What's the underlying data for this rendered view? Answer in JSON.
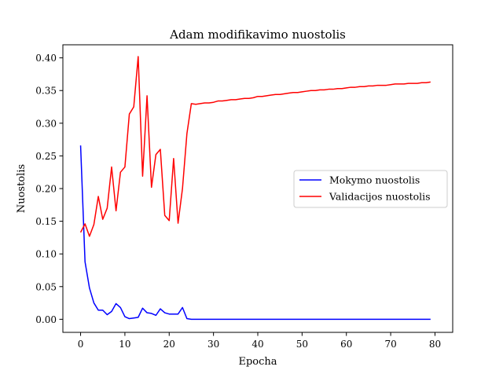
{
  "chart_data": {
    "type": "line",
    "title": "Adam modifikavimo nuostolis",
    "xlabel": "Epocha",
    "ylabel": "Nuostolis",
    "xlim": [
      -4,
      84
    ],
    "ylim": [
      -0.02,
      0.42
    ],
    "xticks": [
      0,
      10,
      20,
      30,
      40,
      50,
      60,
      70,
      80
    ],
    "yticks": [
      0.0,
      0.05,
      0.1,
      0.15,
      0.2,
      0.25,
      0.3,
      0.35,
      0.4
    ],
    "xtick_labels": [
      "0",
      "10",
      "20",
      "30",
      "40",
      "50",
      "60",
      "70",
      "80"
    ],
    "ytick_labels": [
      "0.00",
      "0.05",
      "0.10",
      "0.15",
      "0.20",
      "0.25",
      "0.30",
      "0.35",
      "0.40"
    ],
    "grid": false,
    "legend": "center-right",
    "series": [
      {
        "name": "Mokymo nuostolis",
        "color": "#0000ff",
        "x": [
          0,
          1,
          2,
          3,
          4,
          5,
          6,
          7,
          8,
          9,
          10,
          11,
          12,
          13,
          14,
          15,
          16,
          17,
          18,
          19,
          20,
          21,
          22,
          23,
          24,
          25,
          26,
          27,
          28,
          29,
          30,
          31,
          32,
          33,
          34,
          35,
          36,
          37,
          38,
          39,
          40,
          41,
          42,
          43,
          44,
          45,
          46,
          47,
          48,
          49,
          50,
          51,
          52,
          53,
          54,
          55,
          56,
          57,
          58,
          59,
          60,
          61,
          62,
          63,
          64,
          65,
          66,
          67,
          68,
          69,
          70,
          71,
          72,
          73,
          74,
          75,
          76,
          77,
          78,
          79
        ],
        "y": [
          0.266,
          0.088,
          0.048,
          0.025,
          0.014,
          0.014,
          0.007,
          0.012,
          0.024,
          0.018,
          0.004,
          0.001,
          0.002,
          0.003,
          0.017,
          0.01,
          0.009,
          0.006,
          0.016,
          0.01,
          0.008,
          0.008,
          0.008,
          0.018,
          0.001,
          0.0,
          0.0,
          0.0,
          0.0,
          0.0,
          0.0,
          0.0,
          0.0,
          0.0,
          0.0,
          0.0,
          0.0,
          0.0,
          0.0,
          0.0,
          0.0,
          0.0,
          0.0,
          0.0,
          0.0,
          0.0,
          0.0,
          0.0,
          0.0,
          0.0,
          0.0,
          0.0,
          0.0,
          0.0,
          0.0,
          0.0,
          0.0,
          0.0,
          0.0,
          0.0,
          0.0,
          0.0,
          0.0,
          0.0,
          0.0,
          0.0,
          0.0,
          0.0,
          0.0,
          0.0,
          0.0,
          0.0,
          0.0,
          0.0,
          0.0,
          0.0,
          0.0,
          0.0,
          0.0,
          0.0
        ]
      },
      {
        "name": "Validacijos nuostolis",
        "color": "#ff0000",
        "x": [
          0,
          1,
          2,
          3,
          4,
          5,
          6,
          7,
          8,
          9,
          10,
          11,
          12,
          13,
          14,
          15,
          16,
          17,
          18,
          19,
          20,
          21,
          22,
          23,
          24,
          25,
          26,
          27,
          28,
          29,
          30,
          31,
          32,
          33,
          34,
          35,
          36,
          37,
          38,
          39,
          40,
          41,
          42,
          43,
          44,
          45,
          46,
          47,
          48,
          49,
          50,
          51,
          52,
          53,
          54,
          55,
          56,
          57,
          58,
          59,
          60,
          61,
          62,
          63,
          64,
          65,
          66,
          67,
          68,
          69,
          70,
          71,
          72,
          73,
          74,
          75,
          76,
          77,
          78,
          79
        ],
        "y": [
          0.133,
          0.146,
          0.127,
          0.145,
          0.188,
          0.153,
          0.17,
          0.233,
          0.166,
          0.225,
          0.233,
          0.314,
          0.325,
          0.402,
          0.219,
          0.342,
          0.202,
          0.252,
          0.26,
          0.159,
          0.151,
          0.246,
          0.147,
          0.2,
          0.284,
          0.33,
          0.329,
          0.33,
          0.331,
          0.331,
          0.332,
          0.334,
          0.334,
          0.335,
          0.336,
          0.336,
          0.337,
          0.338,
          0.338,
          0.339,
          0.341,
          0.341,
          0.342,
          0.343,
          0.344,
          0.344,
          0.345,
          0.346,
          0.347,
          0.347,
          0.348,
          0.349,
          0.35,
          0.35,
          0.351,
          0.351,
          0.352,
          0.352,
          0.353,
          0.353,
          0.354,
          0.355,
          0.355,
          0.356,
          0.356,
          0.357,
          0.357,
          0.358,
          0.358,
          0.358,
          0.359,
          0.36,
          0.36,
          0.36,
          0.361,
          0.361,
          0.361,
          0.362,
          0.362,
          0.363
        ]
      }
    ]
  }
}
